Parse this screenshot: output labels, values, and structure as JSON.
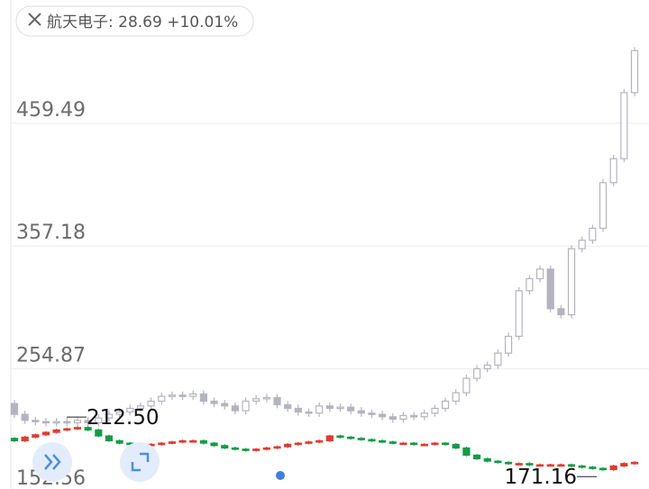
{
  "chart_data": {
    "type": "candlestick",
    "legend": {
      "name": "航天电子:",
      "price": 28.69,
      "change": {
        "value": 10.01,
        "label": "+10.01%"
      }
    },
    "ylim": [
      152.56,
      562.17
    ],
    "yticks": [
      152.56,
      254.87,
      357.18,
      459.49
    ],
    "grid": true,
    "annotations": [
      {
        "label": "212.50",
        "value": 212.5
      },
      {
        "label": "171.16",
        "value": 171.16
      }
    ],
    "series": [
      {
        "color_up": "#b4b4c0",
        "color_down": "#b4b4c0",
        "open": [
          226,
          217,
          212,
          211,
          210,
          211,
          210,
          212,
          210,
          214,
          217,
          219,
          222,
          224,
          228,
          232,
          233,
          232,
          234,
          228,
          226,
          224,
          220,
          228,
          230,
          231,
          225,
          222,
          219,
          218,
          224,
          222,
          223,
          220,
          218,
          217,
          215,
          213,
          216,
          215,
          218,
          222,
          228,
          235,
          247,
          255,
          258,
          268,
          282,
          320,
          330,
          338,
          305,
          300,
          355,
          362,
          372,
          410,
          430,
          485
        ],
        "high": [
          229,
          220,
          215,
          214,
          214,
          214,
          215,
          215,
          217,
          220,
          222,
          225,
          227,
          231,
          235,
          236,
          236,
          237,
          237,
          231,
          229,
          227,
          231,
          233,
          234,
          234,
          228,
          225,
          222,
          227,
          227,
          226,
          226,
          223,
          221,
          220,
          218,
          219,
          219,
          221,
          225,
          231,
          238,
          250,
          258,
          261,
          271,
          285,
          323,
          333,
          341,
          341,
          308,
          358,
          365,
          375,
          413,
          433,
          488,
          523
        ],
        "low": [
          214,
          209,
          208,
          207,
          207,
          207,
          207,
          207,
          207,
          211,
          214,
          216,
          219,
          221,
          225,
          229,
          229,
          229,
          225,
          223,
          221,
          217,
          217,
          225,
          227,
          222,
          219,
          216,
          215,
          215,
          219,
          219,
          217,
          215,
          214,
          212,
          210,
          210,
          212,
          212,
          215,
          219,
          225,
          232,
          244,
          252,
          255,
          265,
          279,
          317,
          327,
          302,
          297,
          297,
          352,
          359,
          369,
          407,
          427,
          482
        ],
        "close": [
          217,
          212,
          211,
          210,
          211,
          210,
          212,
          210,
          214,
          217,
          219,
          222,
          224,
          228,
          232,
          233,
          232,
          234,
          228,
          226,
          224,
          220,
          228,
          230,
          231,
          225,
          222,
          219,
          218,
          224,
          222,
          223,
          220,
          218,
          217,
          215,
          213,
          216,
          215,
          218,
          222,
          228,
          235,
          247,
          255,
          258,
          268,
          282,
          320,
          330,
          338,
          305,
          300,
          355,
          362,
          372,
          410,
          430,
          485,
          520
        ]
      },
      {
        "color_up": "#e23b2e",
        "color_down": "#139c45",
        "open": [
          197,
          195,
          198,
          200,
          202,
          204,
          205,
          206,
          204,
          199,
          195,
          193,
          192,
          191,
          192,
          193,
          194,
          195,
          195,
          193,
          191,
          189,
          188,
          187,
          188,
          189,
          190,
          192,
          193,
          194,
          195,
          199,
          198,
          197,
          196,
          195,
          194,
          193,
          193,
          192,
          192,
          193,
          192,
          189,
          183,
          180,
          178,
          177,
          176,
          176,
          175,
          175,
          175,
          175,
          174,
          173,
          172,
          171,
          174,
          176
        ],
        "high": [
          198,
          199,
          201,
          203,
          205,
          206,
          207,
          207,
          205,
          200,
          196,
          194,
          193,
          193,
          194,
          195,
          196,
          196,
          196,
          194,
          192,
          190,
          189,
          189,
          190,
          191,
          193,
          194,
          195,
          196,
          200,
          200,
          199,
          198,
          197,
          196,
          195,
          194,
          194,
          193,
          194,
          194,
          193,
          190,
          184,
          181,
          179,
          178,
          177,
          177,
          176,
          176,
          176,
          176,
          175,
          174,
          173,
          175,
          177,
          178
        ],
        "low": [
          194,
          194,
          197,
          199,
          201,
          203,
          204,
          203,
          198,
          194,
          192,
          191,
          190,
          190,
          191,
          192,
          193,
          194,
          192,
          190,
          188,
          187,
          186,
          186,
          187,
          188,
          189,
          191,
          192,
          193,
          194,
          197,
          196,
          195,
          194,
          193,
          192,
          192,
          191,
          191,
          191,
          191,
          188,
          182,
          179,
          177,
          176,
          175,
          175,
          174,
          174,
          174,
          174,
          173,
          172,
          171,
          170,
          170,
          173,
          175
        ],
        "close": [
          195,
          198,
          200,
          202,
          204,
          205,
          206,
          204,
          199,
          195,
          193,
          192,
          191,
          192,
          193,
          194,
          195,
          195,
          193,
          191,
          189,
          188,
          187,
          188,
          189,
          190,
          192,
          193,
          194,
          195,
          199,
          198,
          197,
          196,
          195,
          194,
          193,
          193,
          192,
          192,
          193,
          192,
          189,
          183,
          180,
          178,
          177,
          176,
          176,
          175,
          175,
          175,
          175,
          174,
          173,
          172,
          171,
          174,
          176,
          177
        ]
      }
    ]
  }
}
